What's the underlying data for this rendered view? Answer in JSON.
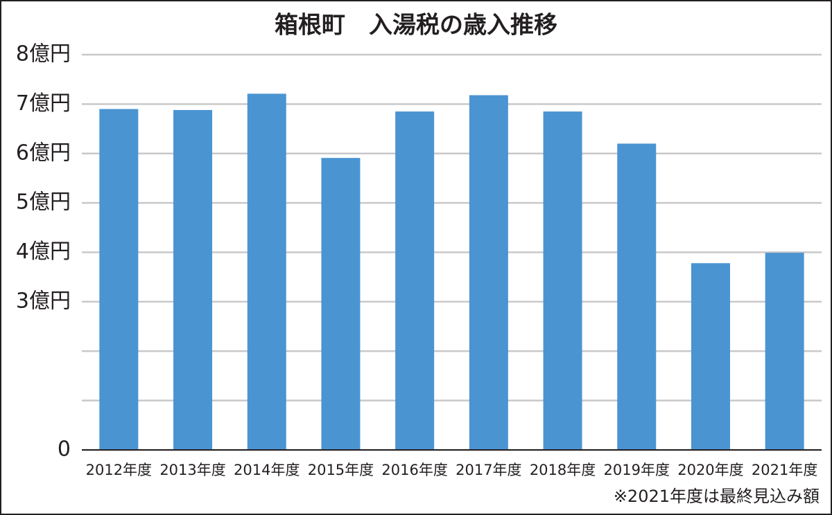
{
  "chart_data": {
    "type": "bar",
    "title": "箱根町　入湯税の歳入推移",
    "categories": [
      "2012年度",
      "2013年度",
      "2014年度",
      "2015年度",
      "2016年度",
      "2017年度",
      "2018年度",
      "2019年度",
      "2020年度",
      "2021年度"
    ],
    "values": [
      6.9,
      6.88,
      7.21,
      5.91,
      6.85,
      7.18,
      6.85,
      6.2,
      3.78,
      3.99
    ],
    "color": "#4a94d2",
    "ylim": [
      0,
      8
    ],
    "yticks": [
      0,
      {
        "value": 1,
        "label": null
      },
      {
        "value": 2,
        "label": null
      },
      {
        "value": 3,
        "label": "3億円"
      },
      {
        "value": 4,
        "label": "4億円"
      },
      {
        "value": 5,
        "label": "5億円"
      },
      {
        "value": 6,
        "label": "6億円"
      },
      {
        "value": 7,
        "label": "7億円"
      },
      {
        "value": 8,
        "label": "8億円"
      }
    ],
    "grid": true,
    "note": "※2021年度は最終見込み額"
  }
}
